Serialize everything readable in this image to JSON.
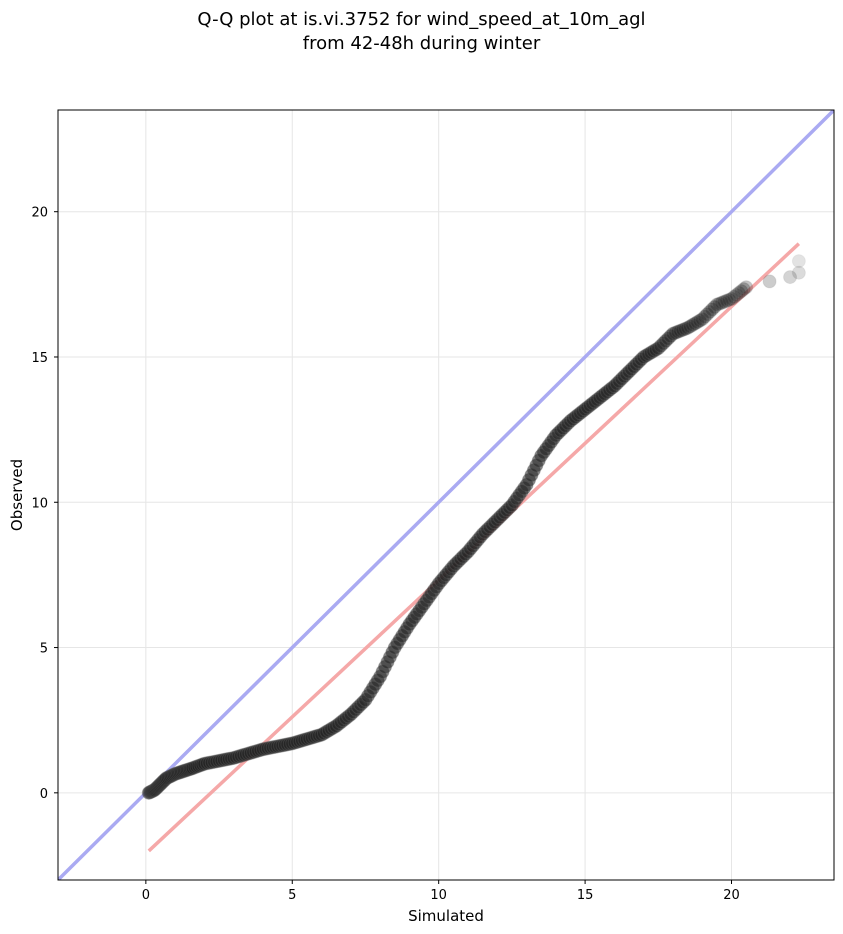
{
  "chart_data": {
    "type": "scatter",
    "title_line1": "Q-Q plot at is.vi.3752 for wind_speed_at_10m_agl",
    "title_line2": "from 42-48h during winter",
    "xlabel": "Simulated",
    "ylabel": "Observed",
    "xlim": [
      -3,
      23.5
    ],
    "ylim": [
      -3,
      23.5
    ],
    "xticks": [
      0,
      5,
      10,
      15,
      20
    ],
    "yticks": [
      0,
      5,
      10,
      15,
      20
    ],
    "grid": true,
    "reference_line": {
      "name": "1:1",
      "color": "#aaaaf2",
      "from": [
        -3,
        -3
      ],
      "to": [
        23.5,
        23.5
      ]
    },
    "fit_line": {
      "color": "#f5a8a8",
      "from": [
        0.1,
        -2.0
      ],
      "to": [
        22.3,
        18.9
      ]
    },
    "quantiles": [
      [
        0.1,
        0.0
      ],
      [
        0.3,
        0.1
      ],
      [
        0.5,
        0.3
      ],
      [
        0.7,
        0.5
      ],
      [
        1.0,
        0.65
      ],
      [
        1.3,
        0.75
      ],
      [
        1.6,
        0.85
      ],
      [
        2.0,
        1.0
      ],
      [
        2.5,
        1.1
      ],
      [
        3.0,
        1.2
      ],
      [
        3.5,
        1.35
      ],
      [
        4.0,
        1.5
      ],
      [
        4.5,
        1.6
      ],
      [
        5.0,
        1.7
      ],
      [
        5.5,
        1.85
      ],
      [
        6.0,
        2.0
      ],
      [
        6.5,
        2.3
      ],
      [
        7.0,
        2.7
      ],
      [
        7.5,
        3.2
      ],
      [
        8.0,
        4.0
      ],
      [
        8.5,
        5.0
      ],
      [
        9.0,
        5.8
      ],
      [
        9.5,
        6.5
      ],
      [
        10.0,
        7.2
      ],
      [
        10.5,
        7.8
      ],
      [
        11.0,
        8.3
      ],
      [
        11.5,
        8.9
      ],
      [
        12.0,
        9.4
      ],
      [
        12.5,
        9.9
      ],
      [
        13.0,
        10.6
      ],
      [
        13.5,
        11.6
      ],
      [
        14.0,
        12.3
      ],
      [
        14.5,
        12.8
      ],
      [
        15.0,
        13.2
      ],
      [
        15.5,
        13.6
      ],
      [
        16.0,
        14.0
      ],
      [
        16.5,
        14.5
      ],
      [
        17.0,
        15.0
      ],
      [
        17.5,
        15.3
      ],
      [
        18.0,
        15.8
      ],
      [
        18.5,
        16.0
      ],
      [
        19.0,
        16.3
      ],
      [
        19.5,
        16.8
      ],
      [
        20.0,
        17.0
      ],
      [
        20.5,
        17.4
      ],
      [
        21.3,
        17.6
      ],
      [
        22.0,
        17.75
      ],
      [
        22.3,
        17.9
      ],
      [
        22.3,
        18.3
      ]
    ]
  }
}
